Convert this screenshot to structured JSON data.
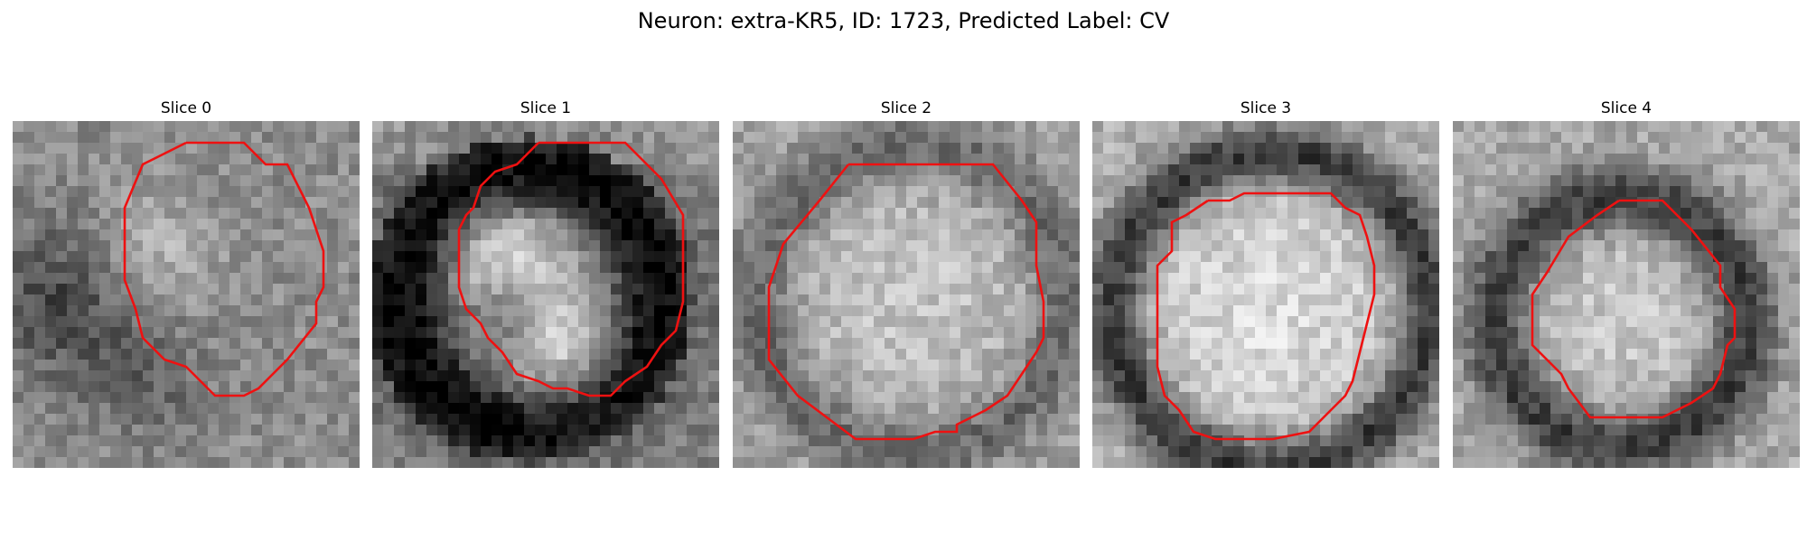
{
  "figure": {
    "title": "Neuron: extra-KR5, ID: 1723, Predicted Label: CV",
    "contour_color": "#ee1111"
  },
  "panels": [
    {
      "title": "Slice 0",
      "pattern": "blob-offcenter"
    },
    {
      "title": "Slice 1",
      "pattern": "dark-ring-lobed"
    },
    {
      "title": "Slice 2",
      "pattern": "bright-disc"
    },
    {
      "title": "Slice 3",
      "pattern": "bright-disc-dark-ring"
    },
    {
      "title": "Slice 4",
      "pattern": "small-disc-dark-ring"
    }
  ]
}
